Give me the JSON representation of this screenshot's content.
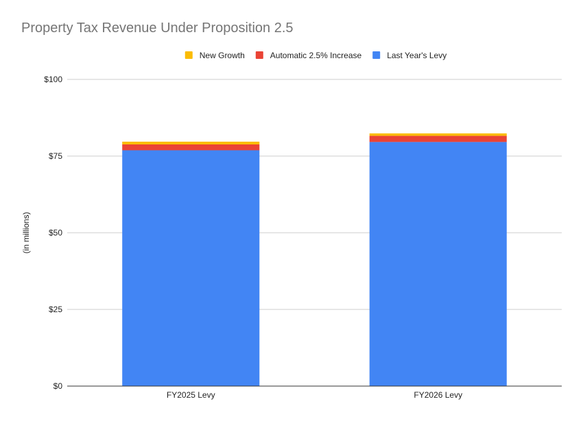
{
  "chart_data": {
    "type": "bar",
    "stacked": true,
    "title": "Property Tax Revenue Under Proposition 2.5",
    "xlabel": "",
    "ylabel": "(in millions)",
    "categories": [
      "FY2025 Levy",
      "FY2026 Levy"
    ],
    "series": [
      {
        "name": "Last Year's Levy",
        "color": "#4285f4",
        "values": [
          76.9,
          79.6
        ]
      },
      {
        "name": "Automatic 2.5% Increase",
        "color": "#ea4335",
        "values": [
          1.9,
          2.0
        ]
      },
      {
        "name": "New Growth",
        "color": "#fbbc04",
        "values": [
          0.9,
          0.8
        ]
      }
    ],
    "legend_order": [
      "New Growth",
      "Automatic 2.5% Increase",
      "Last Year's Levy"
    ],
    "legend_position": "top",
    "ylim": [
      0,
      100
    ],
    "yticks": [
      0,
      25,
      50,
      75,
      100
    ],
    "ytick_labels": [
      "$0",
      "$25",
      "$50",
      "$75",
      "$100"
    ],
    "grid": true
  }
}
